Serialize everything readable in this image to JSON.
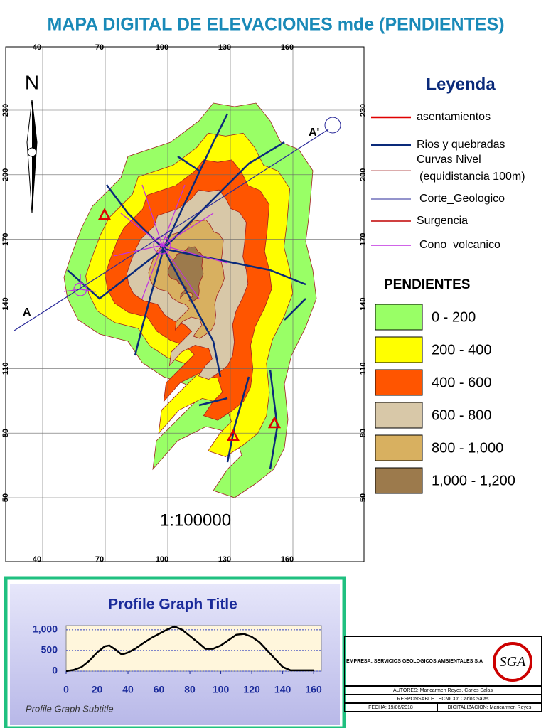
{
  "title": "MAPA DIGITAL DE ELEVACIONES mde (PENDIENTES)",
  "map": {
    "xticks": [
      40,
      70,
      100,
      130,
      160
    ],
    "yticks": [
      230,
      200,
      170,
      140,
      110,
      80,
      50
    ],
    "north": "N",
    "section_start": "A",
    "section_end": "A'",
    "scale": "1:100000"
  },
  "legend": {
    "title": "Leyenda",
    "items": [
      {
        "label": "asentamientos",
        "color": "#e00000"
      },
      {
        "label": "Rios y quebradas",
        "color": "#0a2a7a"
      },
      {
        "label": "Curvas Nivel",
        "note": "(equidistancia 100m)",
        "color": "#a02020"
      },
      {
        "label": "Corte_Geologico",
        "color": "#2a2a9a"
      },
      {
        "label": "Surgencia",
        "color": "#c00000"
      },
      {
        "label": "Cono_volcanico",
        "color": "#c030e0"
      }
    ]
  },
  "slopes": {
    "title": "PENDIENTES",
    "classes": [
      {
        "label": "0 - 200",
        "color": "#99ff66"
      },
      {
        "label": "200 - 400",
        "color": "#ffff00"
      },
      {
        "label": "400 - 600",
        "color": "#ff5500"
      },
      {
        "label": "600 - 800",
        "color": "#d8c8a8"
      },
      {
        "label": "800 - 1,000",
        "color": "#d8b060"
      },
      {
        "label": "1,000 - 1,200",
        "color": "#9c7a4c"
      }
    ]
  },
  "profile": {
    "type": "line",
    "title": "Profile Graph Title",
    "subtitle": "Profile Graph Subtitle",
    "x": [
      0,
      5,
      10,
      15,
      20,
      25,
      28,
      32,
      36,
      40,
      45,
      50,
      55,
      60,
      65,
      70,
      75,
      80,
      85,
      90,
      95,
      100,
      105,
      110,
      115,
      120,
      125,
      130,
      135,
      140,
      145,
      150,
      160
    ],
    "values": [
      0,
      30,
      100,
      250,
      450,
      600,
      620,
      520,
      400,
      450,
      550,
      680,
      800,
      900,
      1000,
      1080,
      1000,
      850,
      700,
      540,
      540,
      620,
      750,
      880,
      900,
      830,
      700,
      500,
      300,
      100,
      20,
      20,
      20
    ],
    "xlim": [
      0,
      165
    ],
    "ylim": [
      0,
      1100
    ],
    "xticks": [
      0,
      20,
      40,
      60,
      80,
      100,
      120,
      140,
      160
    ],
    "yticks": [
      0,
      500,
      {
        "value": 1000,
        "label": "1,000"
      }
    ],
    "color": "#000000",
    "grid": true
  },
  "titleblock": {
    "company": "EMPRESA: SERVICIOS GEOLOGICOS AMBIENTALES S.A",
    "logo": "SGA",
    "authors": "AUTORES: Maricarmen Reyes, Carlos Salas",
    "technical": "RESPONSABLE TECNICO: Carlos Salas",
    "date": "FECHA: 19/06/2018",
    "digitization": "DIGITALIZACION: Maricarmen Reyes"
  }
}
